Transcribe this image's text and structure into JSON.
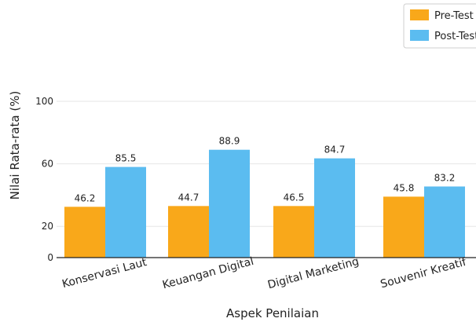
{
  "chart_data": {
    "type": "bar",
    "title": "",
    "xlabel": "Aspek Penilaian",
    "ylabel": "Nilai Rata-rata (%)",
    "categories": [
      "Konservasi Laut",
      "Keuangan Digital",
      "Digital Marketing",
      "Souvenir Kreatif"
    ],
    "series": [
      {
        "name": "Pre-Test",
        "color": "#f9a81a",
        "values": [
          46.2,
          44.7,
          46.5,
          45.8
        ],
        "bar_heights": [
          32.5,
          33.0,
          33.0,
          39.0
        ]
      },
      {
        "name": "Post-Test",
        "color": "#5bbcf0",
        "values": [
          85.5,
          88.9,
          84.7,
          83.2
        ],
        "bar_heights": [
          58.0,
          69.0,
          63.5,
          45.5
        ]
      }
    ],
    "yticks": [
      0,
      20,
      60,
      100
    ],
    "ylim": [
      0,
      125
    ],
    "grid": "horizontal",
    "legend_position": "top-right"
  }
}
